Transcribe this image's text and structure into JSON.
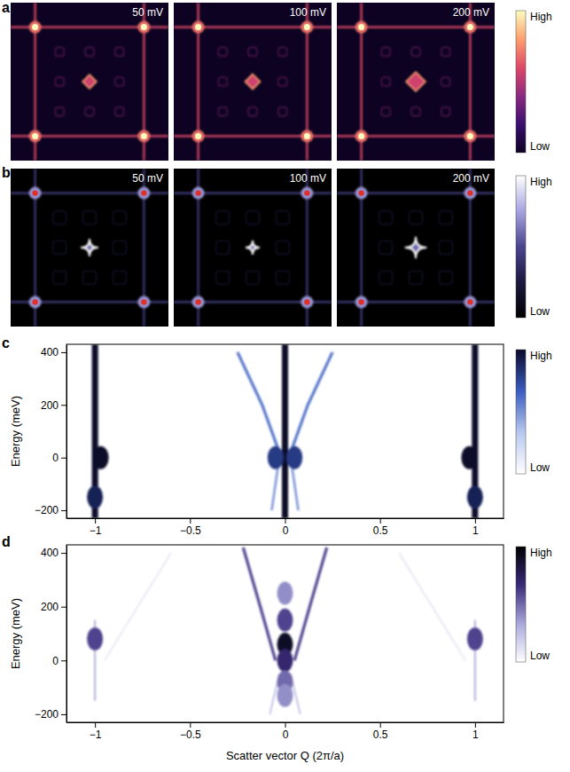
{
  "chart_data": [
    {
      "type": "image_grid",
      "panel_label": "a",
      "images": [
        {
          "title": "50 mV",
          "center_size": 0.13
        },
        {
          "title": "100 mV",
          "center_size": 0.14
        },
        {
          "title": "200 mV",
          "center_size": 0.18
        }
      ],
      "xlim": [
        -1.45,
        1.45
      ],
      "ylim": [
        -1.45,
        1.45
      ],
      "tick_labels": false,
      "bragg_peaks": {
        "x": [
          -1,
          1,
          -1,
          1
        ],
        "y": [
          1,
          1,
          -1,
          -1
        ],
        "intensity": 1
      },
      "line_intensity": 0.6,
      "center_intensity": 0.8,
      "colorbar": {
        "range": [
          0,
          1
        ],
        "ticks": [
          {
            "value": 1,
            "label": "High"
          },
          {
            "value": 0,
            "label": "Low"
          }
        ],
        "colors": [
          "#0d0221",
          "#3b0f70",
          "#8c2981",
          "#de4968",
          "#fe9f6d",
          "#fcfdbf"
        ]
      }
    },
    {
      "type": "image_grid",
      "panel_label": "b",
      "images": [
        {
          "title": "50 mV",
          "center_size": 0.16
        },
        {
          "title": "100 mV",
          "center_size": 0.13
        },
        {
          "title": "200 mV",
          "center_size": 0.2
        }
      ],
      "xlim": [
        -1.45,
        1.45
      ],
      "ylim": [
        -1.45,
        1.45
      ],
      "tick_labels": false,
      "bragg_peaks": {
        "x": [
          -1,
          1,
          -1,
          1
        ],
        "y": [
          1,
          1,
          -1,
          -1
        ],
        "intensity": 1,
        "color": "#e0302a"
      },
      "line_intensity": 0.45,
      "center_intensity": 1,
      "colorbar": {
        "range": [
          0,
          1
        ],
        "ticks": [
          {
            "value": 1,
            "label": "High"
          },
          {
            "value": 0,
            "label": "Low"
          }
        ],
        "colors": [
          "#000000",
          "#1c1840",
          "#4a4590",
          "#a6a4e0",
          "#ffffff"
        ]
      }
    },
    {
      "type": "heatmap",
      "panel_label": "c",
      "ylabel": "Energy (meV)",
      "xlim": [
        -1.15,
        1.15
      ],
      "ylim": [
        -230,
        430
      ],
      "xticks": [
        {
          "value": -1,
          "label": "−1"
        },
        {
          "value": -0.5,
          "label": "−0.5"
        },
        0,
        0.5,
        1
      ],
      "yticks": [
        {
          "value": -200,
          "label": "−200"
        },
        0,
        200,
        400
      ],
      "lines": [
        {
          "x": [
            -1,
            -1
          ],
          "y": [
            -230,
            430
          ],
          "intensity": 1
        },
        {
          "x": [
            1,
            1
          ],
          "y": [
            -230,
            430
          ],
          "intensity": 1
        },
        {
          "x": [
            0,
            0
          ],
          "y": [
            -230,
            430
          ],
          "intensity": 1
        },
        {
          "x": [
            -0.02,
            -0.12,
            -0.25
          ],
          "y": [
            0,
            200,
            400
          ],
          "intensity": 0.6
        },
        {
          "x": [
            0.02,
            0.12,
            0.25
          ],
          "y": [
            0,
            200,
            400
          ],
          "intensity": 0.6
        },
        {
          "x": [
            -0.03,
            -0.07
          ],
          "y": [
            0,
            -200
          ],
          "intensity": 0.5
        },
        {
          "x": [
            0.03,
            0.07
          ],
          "y": [
            0,
            -200
          ],
          "intensity": 0.5
        }
      ],
      "spots": {
        "x": [
          -0.97,
          0.97,
          -0.05,
          0.05,
          -1,
          1
        ],
        "y": [
          0,
          0,
          0,
          0,
          -150,
          -150
        ],
        "intensity": [
          1,
          1,
          0.8,
          0.8,
          0.9,
          0.9
        ]
      },
      "colorbar": {
        "range": [
          0,
          1
        ],
        "ticks": [
          {
            "value": 1,
            "label": "High"
          },
          {
            "value": 0,
            "label": "Low"
          }
        ],
        "colors": [
          "#ffffff",
          "#b8c8ee",
          "#3a5cc0",
          "#0a0a2a"
        ]
      }
    },
    {
      "type": "heatmap",
      "panel_label": "d",
      "ylabel": "Energy (meV)",
      "xlabel": "Scatter vector Q (2π/a)",
      "xlim": [
        -1.15,
        1.15
      ],
      "ylim": [
        -230,
        430
      ],
      "xticks": [
        {
          "value": -1,
          "label": "−1"
        },
        {
          "value": -0.5,
          "label": "−0.5"
        },
        0,
        0.5,
        1
      ],
      "yticks": [
        {
          "value": -200,
          "label": "−200"
        },
        0,
        200,
        400
      ],
      "lines": [
        {
          "x": [
            -0.05,
            -0.13,
            -0.22
          ],
          "y": [
            0,
            200,
            420
          ],
          "intensity": 0.6
        },
        {
          "x": [
            0.05,
            0.13,
            0.22
          ],
          "y": [
            0,
            200,
            420
          ],
          "intensity": 0.6
        },
        {
          "x": [
            -0.08,
            -0.03
          ],
          "y": [
            -200,
            -50
          ],
          "intensity": 0.3
        },
        {
          "x": [
            0.08,
            0.03
          ],
          "y": [
            -200,
            -50
          ],
          "intensity": 0.3
        },
        {
          "x": [
            -1,
            -1
          ],
          "y": [
            -150,
            150
          ],
          "intensity": 0.35
        },
        {
          "x": [
            1,
            1
          ],
          "y": [
            -150,
            150
          ],
          "intensity": 0.35
        },
        {
          "x": [
            -0.95,
            -0.6
          ],
          "y": [
            0,
            400
          ],
          "intensity": 0.15
        },
        {
          "x": [
            0.95,
            0.6
          ],
          "y": [
            0,
            400
          ],
          "intensity": 0.15
        }
      ],
      "spots": {
        "x": [
          0,
          0,
          0,
          0,
          0,
          0,
          -1,
          1
        ],
        "y": [
          250,
          150,
          60,
          0,
          -80,
          -130,
          80,
          80
        ],
        "intensity": [
          0.4,
          0.6,
          0.9,
          0.7,
          0.5,
          0.4,
          0.6,
          0.6
        ]
      },
      "colorbar": {
        "range": [
          0,
          1
        ],
        "ticks": [
          {
            "value": 1,
            "label": "High"
          },
          {
            "value": 0,
            "label": "Low"
          }
        ],
        "colors": [
          "#ffffff",
          "#a8a8dc",
          "#3a2a7a",
          "#000000"
        ]
      }
    }
  ]
}
